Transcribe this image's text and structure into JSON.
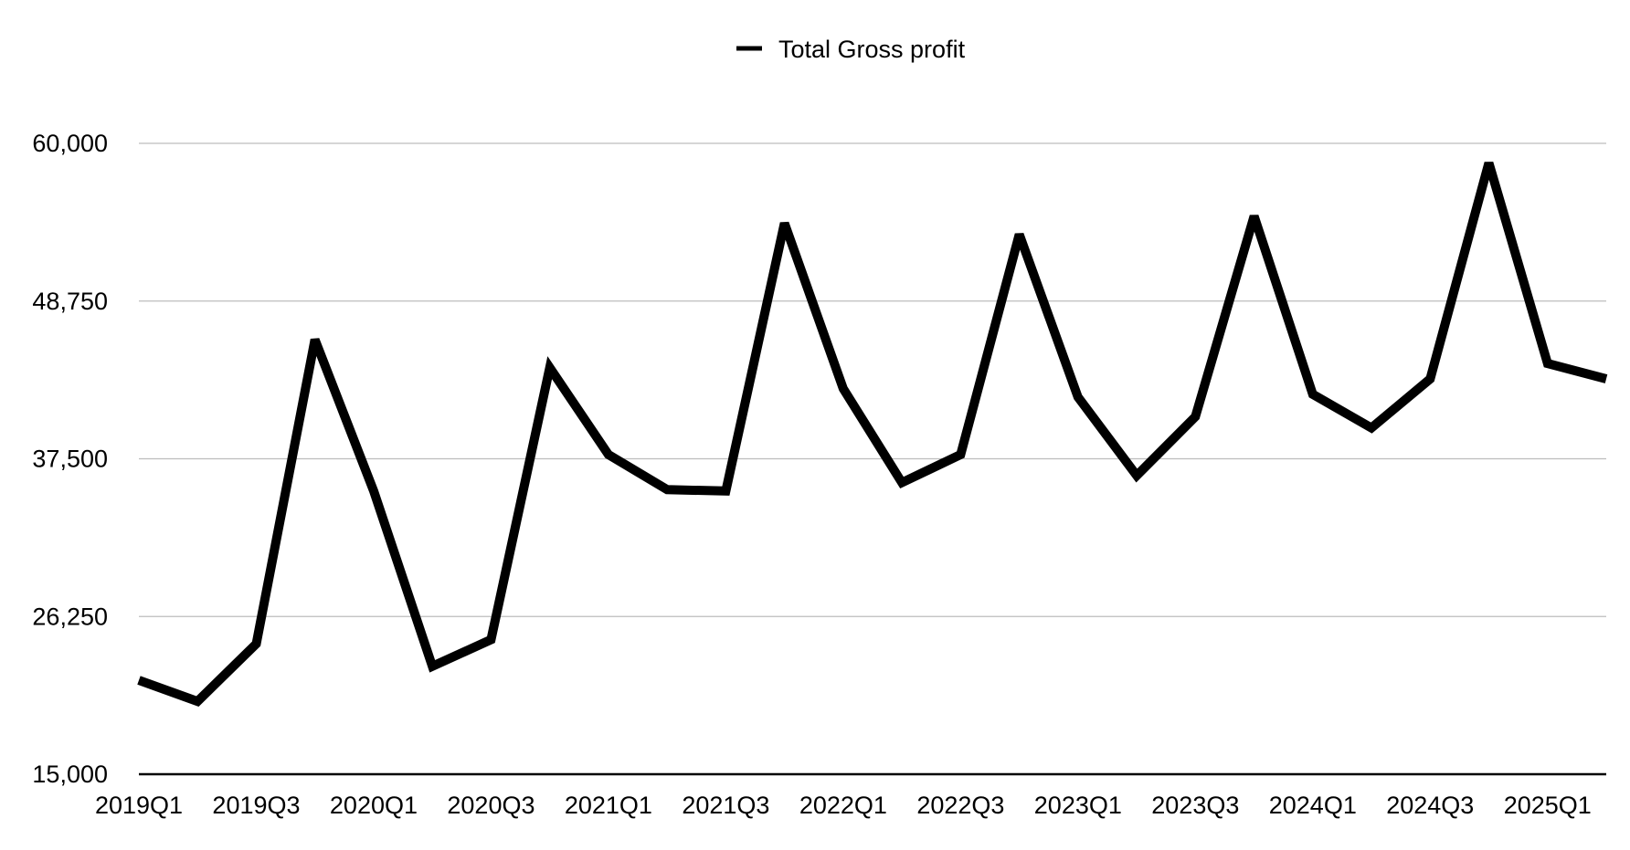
{
  "chart_data": {
    "type": "line",
    "title": "",
    "xlabel": "",
    "ylabel": "",
    "legend_position": "top-center",
    "grid": true,
    "ylim": [
      15000,
      60000
    ],
    "y_ticks": [
      15000,
      26250,
      37500,
      48750,
      60000
    ],
    "y_tick_labels": [
      "15,000",
      "26,250",
      "37,500",
      "48,750",
      "60,000"
    ],
    "categories": [
      "2019Q1",
      "2019Q2",
      "2019Q3",
      "2019Q4",
      "2020Q1",
      "2020Q2",
      "2020Q3",
      "2020Q4",
      "2021Q1",
      "2021Q2",
      "2021Q3",
      "2021Q4",
      "2022Q1",
      "2022Q2",
      "2022Q3",
      "2022Q4",
      "2023Q1",
      "2023Q2",
      "2023Q3",
      "2023Q4",
      "2024Q1",
      "2024Q2",
      "2024Q3",
      "2024Q4",
      "2025Q1",
      "2025Q2"
    ],
    "x_tick_labels": [
      "2019Q1",
      "2019Q3",
      "2020Q1",
      "2020Q3",
      "2021Q1",
      "2021Q3",
      "2022Q1",
      "2022Q3",
      "2023Q1",
      "2023Q3",
      "2024Q1",
      "2024Q3",
      "2025Q1"
    ],
    "series": [
      {
        "name": "Total Gross profit",
        "color": "#000000",
        "values": [
          21700,
          20200,
          24300,
          46000,
          35200,
          22700,
          24600,
          44000,
          37800,
          35300,
          35200,
          54300,
          42500,
          35800,
          37800,
          53500,
          41900,
          36300,
          40500,
          54800,
          42100,
          39700,
          43200,
          58600,
          44300,
          43200
        ]
      }
    ]
  }
}
